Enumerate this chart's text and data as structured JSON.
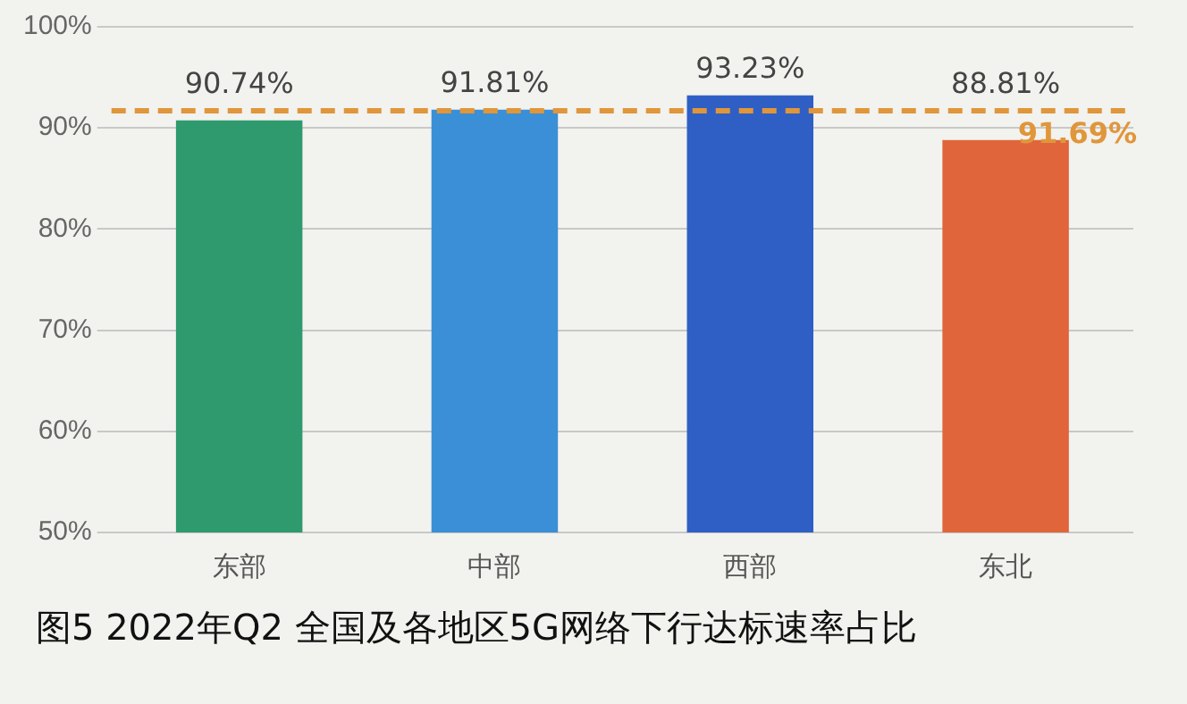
{
  "chart_data": {
    "type": "bar",
    "title": "图5 2022年Q2 全国及各地区5G网络下行达标速率占比",
    "categories": [
      "东部",
      "中部",
      "西部",
      "东北"
    ],
    "values": [
      90.74,
      91.81,
      93.23,
      88.81
    ],
    "colors": [
      "#2e9a6e",
      "#3a8fd6",
      "#2f5fc4",
      "#e0653a"
    ],
    "value_labels": [
      "90.74%",
      "91.81%",
      "93.23%",
      "88.81%"
    ],
    "ylim": [
      50,
      100
    ],
    "yticks": [
      {
        "value": 50,
        "label": "50%"
      },
      {
        "value": 60,
        "label": "60%"
      },
      {
        "value": 70,
        "label": "70%"
      },
      {
        "value": 80,
        "label": "80%"
      },
      {
        "value": 90,
        "label": "90%"
      },
      {
        "value": 100,
        "label": "100%"
      }
    ],
    "grid": "y",
    "ref_lines": [
      {
        "axis": "y",
        "value": 91.69,
        "label": "91.69%",
        "color": "#e0963a",
        "line_style": "dashed"
      }
    ]
  }
}
